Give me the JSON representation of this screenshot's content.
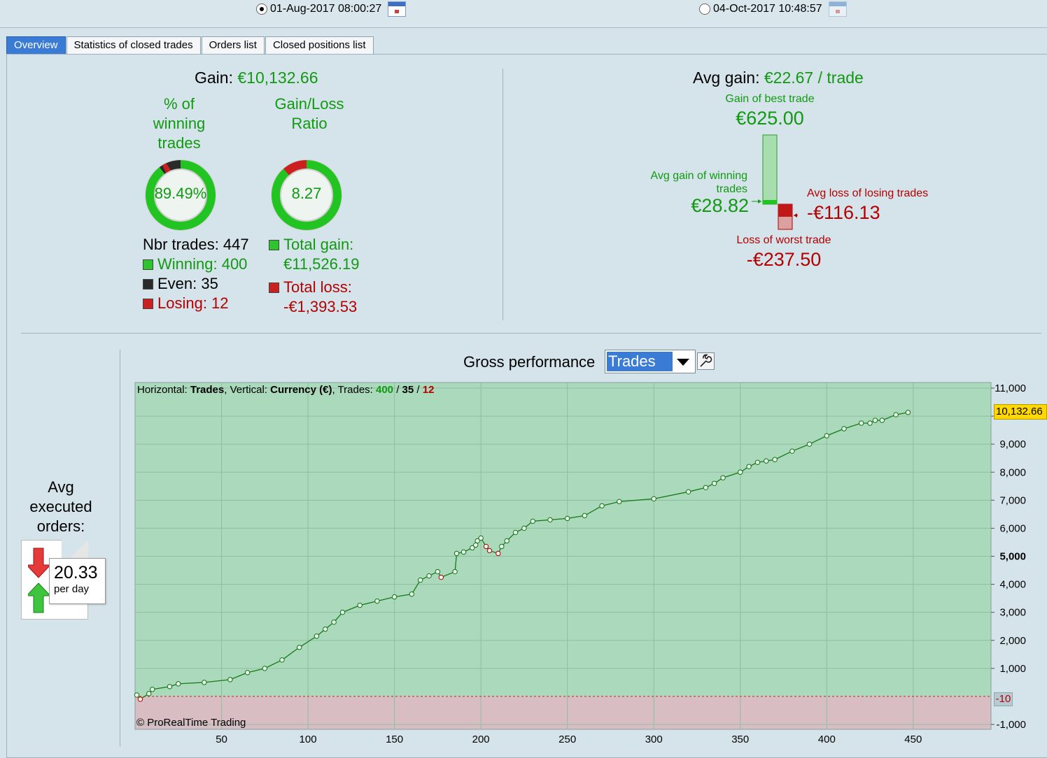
{
  "topbar": {
    "start_date": "01-Aug-2017 08:00:27",
    "end_date": "04-Oct-2017 10:48:57"
  },
  "tabs": [
    "Overview",
    "Statistics of closed trades",
    "Orders list",
    "Closed positions list"
  ],
  "summary": {
    "gain_label": "Gain:",
    "gain_value": "€10,132.66",
    "pct_winning_label": "% of winning trades",
    "pct_winning_value": "89.49%",
    "ratio_label": "Gain/Loss Ratio",
    "ratio_value": "8.27",
    "nbr_trades": "Nbr trades: 447",
    "winning": "Winning: 400",
    "even": "Even: 35",
    "losing": "Losing: 12",
    "total_gain_label": "Total gain:",
    "total_gain_value": "€11,526.19",
    "total_loss_label": "Total loss:",
    "total_loss_value": "-€1,393.53"
  },
  "avg": {
    "avg_gain_label": "Avg gain:",
    "avg_gain_value": "€22.67 / trade",
    "best_label": "Gain of best trade",
    "best_value": "€625.00",
    "avg_win_label": "Avg gain of winning trades",
    "avg_win_value": "€28.82",
    "avg_loss_label": "Avg loss of losing trades",
    "avg_loss_value": "-€116.13",
    "worst_label": "Loss of worst trade",
    "worst_value": "-€237.50"
  },
  "orders": {
    "label": "Avg executed orders:",
    "value": "20.33",
    "unit": "per day"
  },
  "perf": {
    "title": "Gross performance",
    "selector": "Trades",
    "header_h_label": "Horizontal: ",
    "header_h_value": "Trades",
    "header_v_label": ", Vertical: ",
    "header_v_value": "Currency (€)",
    "header_t_label": ", Trades: ",
    "header_win": "400",
    "header_sep1": " / ",
    "header_even": "35",
    "header_sep2": " / ",
    "header_lose": "12",
    "copyright": "© ProRealTime Trading",
    "current_tag": "10,132.66",
    "zero_tag": "-10"
  },
  "colors": {
    "gain_green": "#119a11",
    "loss_red": "#b40000",
    "plot_positive": "#aad9bb",
    "plot_negative": "#d8bdc3",
    "line": "#167a16",
    "accent_blue": "#3a7bd5"
  },
  "chart_data": {
    "type": "line",
    "xlabel": "",
    "ylabel": "",
    "xlim": [
      0,
      495
    ],
    "ylim": [
      -1000,
      11000
    ],
    "xticks": [
      50,
      100,
      150,
      200,
      250,
      300,
      350,
      400,
      450
    ],
    "xtick_labels": [
      "50",
      "100",
      "150",
      "200",
      "250",
      "300",
      "350",
      "400",
      "450"
    ],
    "yticks": [
      -1000,
      1000,
      2000,
      3000,
      4000,
      5000,
      6000,
      7000,
      8000,
      9000,
      10000,
      11000
    ],
    "ytick_labels": [
      "-1,000",
      "1,000",
      "2,000",
      "3,000",
      "4,000",
      "5,000",
      "6,000",
      "7,000",
      "8,000",
      "9,000",
      "",
      "11,000"
    ],
    "series": [
      {
        "values_x": [
          1,
          3,
          8,
          10,
          20,
          25,
          40,
          55,
          65,
          75,
          85,
          95,
          105,
          110,
          115,
          120,
          130,
          140,
          150,
          160,
          165,
          170,
          175,
          177,
          185,
          186,
          190,
          195,
          197,
          198,
          200,
          203,
          205,
          210,
          212,
          215,
          220,
          225,
          230,
          240,
          250,
          260,
          270,
          280,
          300,
          320,
          330,
          335,
          340,
          350,
          355,
          360,
          365,
          370,
          380,
          390,
          400,
          410,
          420,
          425,
          428,
          432,
          440,
          447
        ],
        "values_y": [
          50,
          -100,
          100,
          250,
          350,
          450,
          500,
          600,
          850,
          1000,
          1300,
          1750,
          2150,
          2400,
          2650,
          3000,
          3250,
          3400,
          3550,
          3650,
          4150,
          4300,
          4450,
          4250,
          4450,
          5100,
          5150,
          5300,
          5400,
          5550,
          5650,
          5350,
          5200,
          5100,
          5350,
          5550,
          5850,
          6000,
          6250,
          6300,
          6350,
          6450,
          6800,
          6950,
          7050,
          7300,
          7450,
          7600,
          7800,
          8000,
          8200,
          8350,
          8400,
          8450,
          8750,
          9000,
          9300,
          9550,
          9750,
          9750,
          9850,
          9850,
          10050,
          10132.66
        ]
      }
    ],
    "grid": true,
    "legend": "none"
  }
}
